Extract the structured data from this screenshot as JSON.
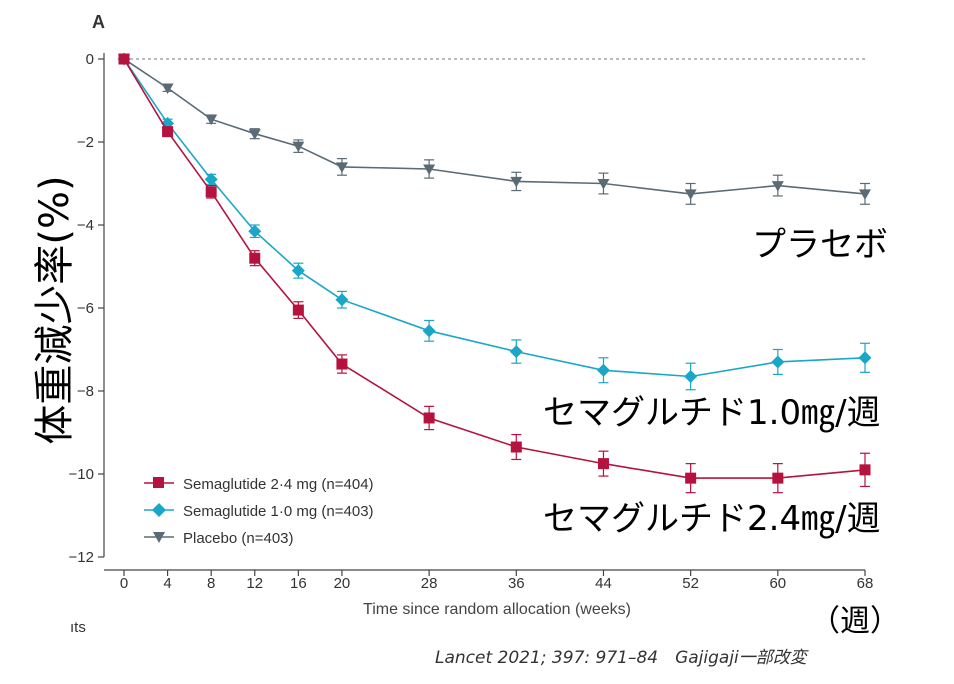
{
  "chart_data": {
    "type": "line",
    "panel_label": "A",
    "title": "",
    "xlabel": "Time since random allocation (weeks)",
    "x_unit_label": "（週）",
    "ylabel": "体重減少率(%)",
    "x": [
      0,
      4,
      8,
      12,
      16,
      20,
      28,
      36,
      44,
      52,
      60,
      68
    ],
    "xlim": [
      0,
      68
    ],
    "ylim": [
      -12,
      0
    ],
    "yticks": [
      0,
      -2,
      -4,
      -6,
      -8,
      -10,
      -12
    ],
    "reference_line": 0,
    "series": [
      {
        "name": "Semaglutide 2·4 mg (n=404)",
        "label_ja": "セマグルチド2.4㎎/週",
        "color": "#b5123e",
        "marker": "square",
        "values": [
          0,
          -1.75,
          -3.2,
          -4.8,
          -6.05,
          -7.35,
          -8.65,
          -9.35,
          -9.75,
          -10.1,
          -10.1,
          -9.9
        ],
        "err": [
          0,
          0.1,
          0.15,
          0.18,
          0.2,
          0.22,
          0.28,
          0.3,
          0.3,
          0.35,
          0.35,
          0.4
        ]
      },
      {
        "name": "Semaglutide 1·0 mg (n=403)",
        "label_ja": "セマグルチド1.0㎎/週",
        "color": "#1aa7c7",
        "marker": "diamond",
        "values": [
          0,
          -1.55,
          -2.9,
          -4.15,
          -5.1,
          -5.8,
          -6.55,
          -7.05,
          -7.5,
          -7.65,
          -7.3,
          -7.2
        ],
        "err": [
          0,
          0.1,
          0.12,
          0.15,
          0.18,
          0.2,
          0.25,
          0.28,
          0.3,
          0.32,
          0.3,
          0.35
        ]
      },
      {
        "name": "Placebo (n=403)",
        "label_ja": "プラセボ",
        "color": "#5b6b75",
        "marker": "triangle-down",
        "values": [
          0,
          -0.7,
          -1.45,
          -1.8,
          -2.1,
          -2.6,
          -2.65,
          -2.95,
          -3.0,
          -3.25,
          -3.05,
          -3.25
        ],
        "err": [
          0,
          0.08,
          0.1,
          0.12,
          0.15,
          0.2,
          0.22,
          0.22,
          0.25,
          0.25,
          0.25,
          0.25
        ]
      }
    ],
    "legend_position": "bottom-left",
    "citation": "Lancet 2021; 397: 971–84　Gajigaji一部改変",
    "cut_off_text": "ıts"
  }
}
